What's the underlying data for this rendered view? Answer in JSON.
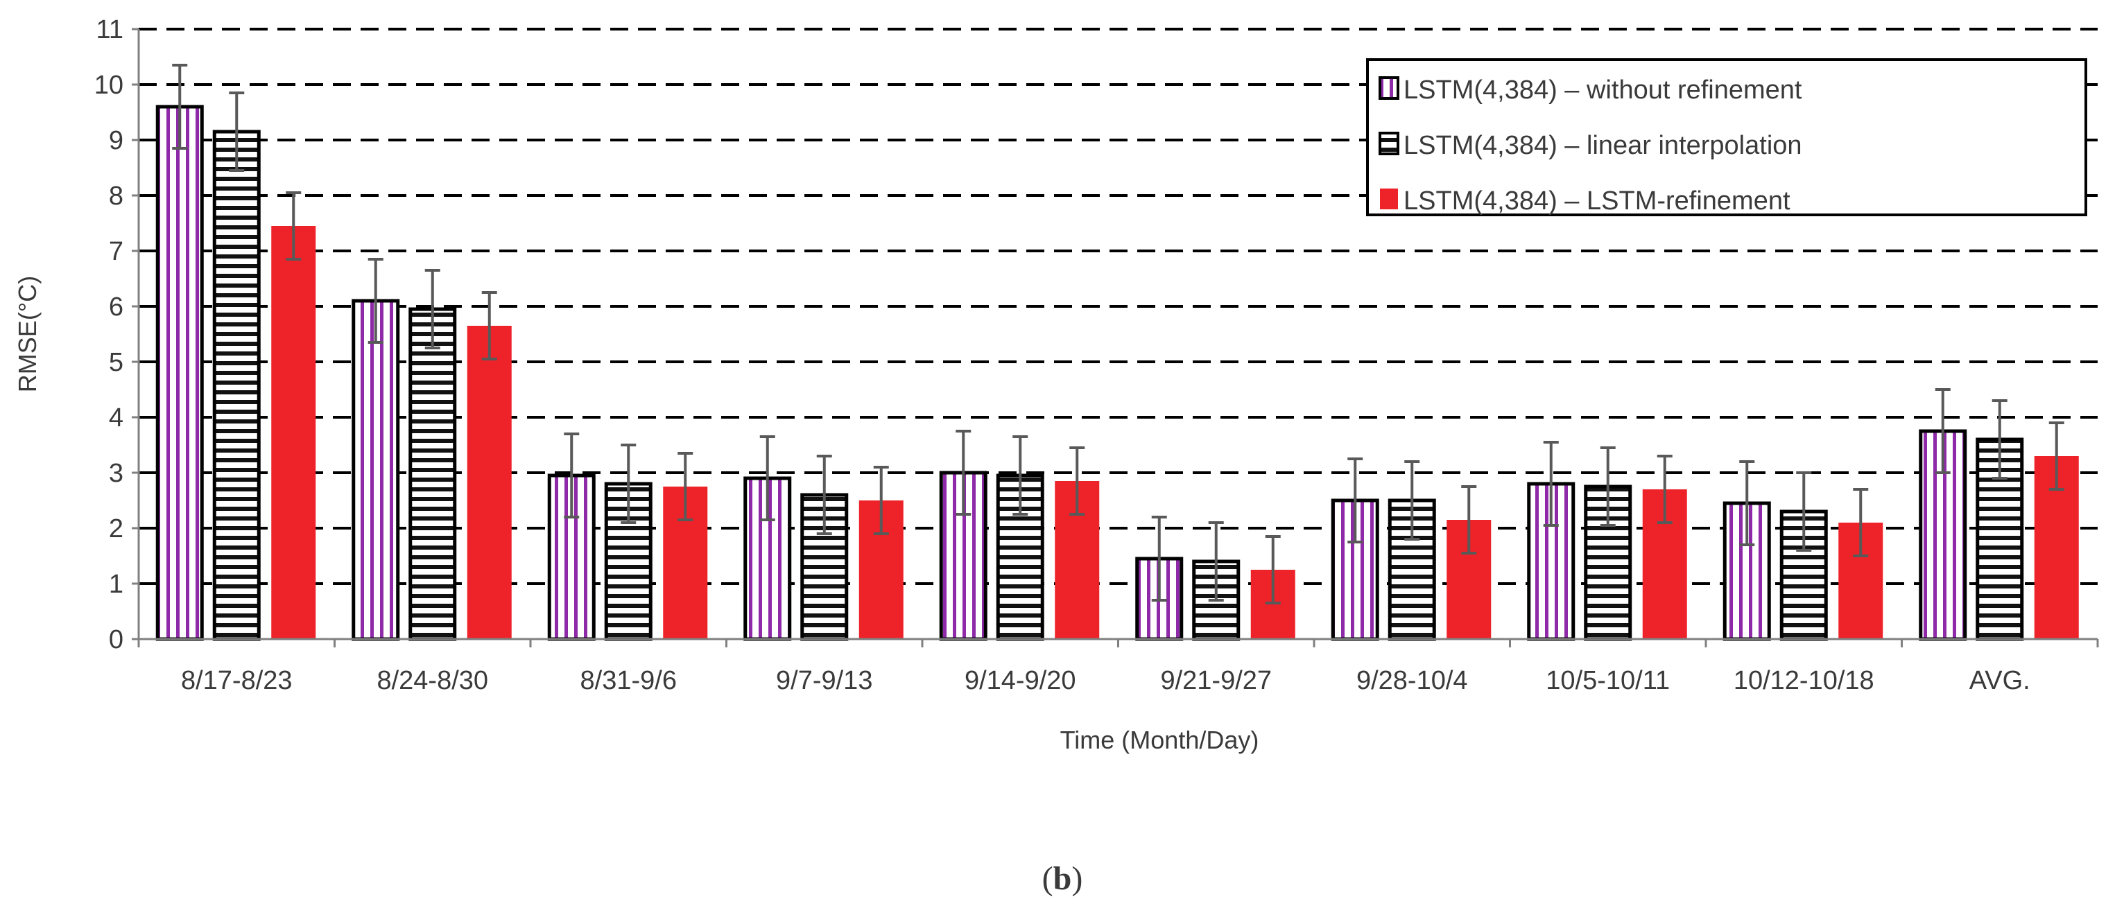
{
  "chart_data": {
    "type": "bar",
    "ylabel": "RMSE(°C)",
    "xlabel": "Time (Month/Day)",
    "ylim": [
      0,
      11
    ],
    "yticks": [
      0,
      1,
      2,
      3,
      4,
      5,
      6,
      7,
      8,
      9,
      10,
      11
    ],
    "grid": "dashed horizontal",
    "legend_position": "top-right",
    "categories": [
      "8/17-8/23",
      "8/24-8/30",
      "8/31-9/6",
      "9/7-9/13",
      "9/14-9/20",
      "9/21-9/27",
      "9/28-10/4",
      "10/5-10/11",
      "10/12-10/18",
      "AVG."
    ],
    "series": [
      {
        "name": "LSTM(4,384) – without refinement",
        "pattern": "vertical-stripes",
        "color": "#8e2aa8",
        "values": [
          9.6,
          6.1,
          2.95,
          2.9,
          3.0,
          1.45,
          2.5,
          2.8,
          2.45,
          3.75
        ],
        "errors": [
          0.75,
          0.75,
          0.75,
          0.75,
          0.75,
          0.75,
          0.75,
          0.75,
          0.75,
          0.75
        ]
      },
      {
        "name": "LSTM(4,384) – linear interpolation",
        "pattern": "horizontal-stripes",
        "color": "#111111",
        "values": [
          9.15,
          5.95,
          2.8,
          2.6,
          2.95,
          1.4,
          2.5,
          2.75,
          2.3,
          3.6
        ],
        "errors": [
          0.7,
          0.7,
          0.7,
          0.7,
          0.7,
          0.7,
          0.7,
          0.7,
          0.7,
          0.7
        ]
      },
      {
        "name": "LSTM(4,384) – LSTM-refinement",
        "pattern": "solid",
        "color": "#ee2229",
        "values": [
          7.45,
          5.65,
          2.75,
          2.5,
          2.85,
          1.25,
          2.15,
          2.7,
          2.1,
          3.3
        ],
        "errors": [
          0.6,
          0.6,
          0.6,
          0.6,
          0.6,
          0.6,
          0.6,
          0.6,
          0.6,
          0.6
        ]
      }
    ]
  },
  "caption": {
    "open": "(",
    "letter": "b",
    "close": ")"
  },
  "colors": {
    "grid": "#000000",
    "axis": "#808080",
    "error_bar": "#595959",
    "text": "#3a3a3a"
  }
}
